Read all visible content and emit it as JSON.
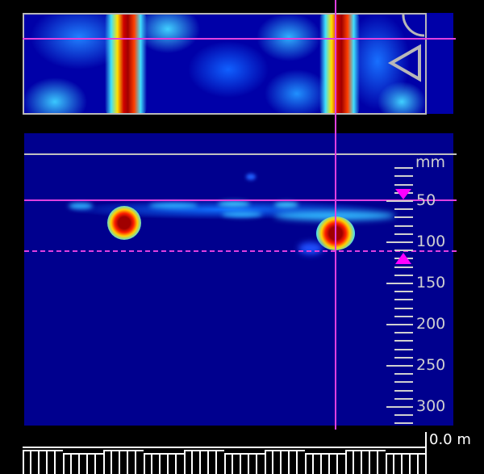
{
  "plan_view": {
    "cursor_icon": "triangle-left-icon",
    "corner_icon": "arc-icon"
  },
  "depth_scale": {
    "unit": "mm",
    "labels": [
      "50",
      "100",
      "150",
      "200",
      "250",
      "300"
    ],
    "depth_range_mm": [
      0,
      320
    ],
    "gate_top_mm": 50,
    "gate_bottom_mm": 110
  },
  "distance": {
    "readout": "0.0 m"
  },
  "colors": {
    "cursor": "#e040e0",
    "background": "#00008e",
    "hot": "#a00000",
    "scale": "#d0d0d0"
  }
}
